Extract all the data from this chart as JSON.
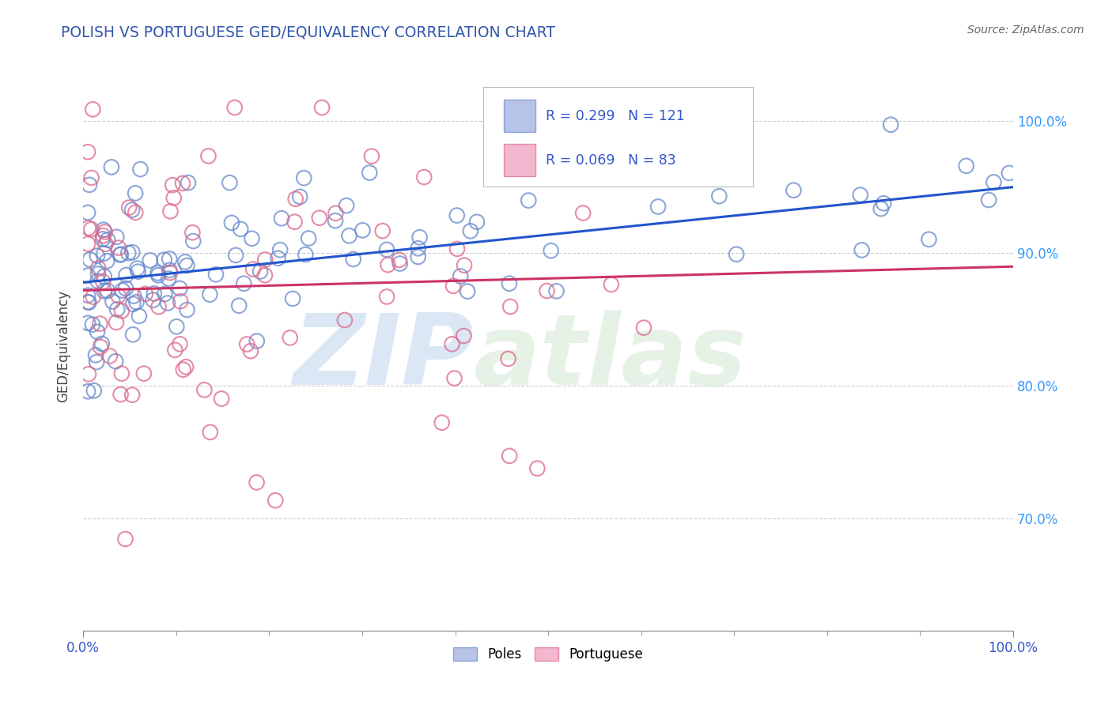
{
  "title": "POLISH VS PORTUGUESE GED/EQUIVALENCY CORRELATION CHART",
  "source": "Source: ZipAtlas.com",
  "ylabel": "GED/Equivalency",
  "title_color": "#3355aa",
  "source_color": "#666666",
  "blue_label": "Poles",
  "pink_label": "Portuguese",
  "blue_R": 0.299,
  "blue_N": 121,
  "pink_R": 0.069,
  "pink_N": 83,
  "blue_marker_color": "#99aadd",
  "pink_marker_color": "#ee99bb",
  "blue_edge_color": "#6688cc",
  "pink_edge_color": "#dd6688",
  "blue_line_color": "#2255cc",
  "pink_line_color": "#cc3366",
  "xlim": [
    0.0,
    1.0
  ],
  "ylim": [
    0.615,
    1.045
  ],
  "yticks": [
    0.7,
    0.8,
    0.9,
    1.0
  ],
  "ytick_labels": [
    "70.0%",
    "80.0%",
    "90.0%",
    "100.0%"
  ],
  "blue_intercept": 0.878,
  "blue_slope": 0.072,
  "pink_intercept": 0.872,
  "pink_slope": 0.018,
  "watermark_color": "#ccddf0",
  "background_color": "#ffffff",
  "grid_color": "#cccccc",
  "legend_text_color": "#3355cc"
}
